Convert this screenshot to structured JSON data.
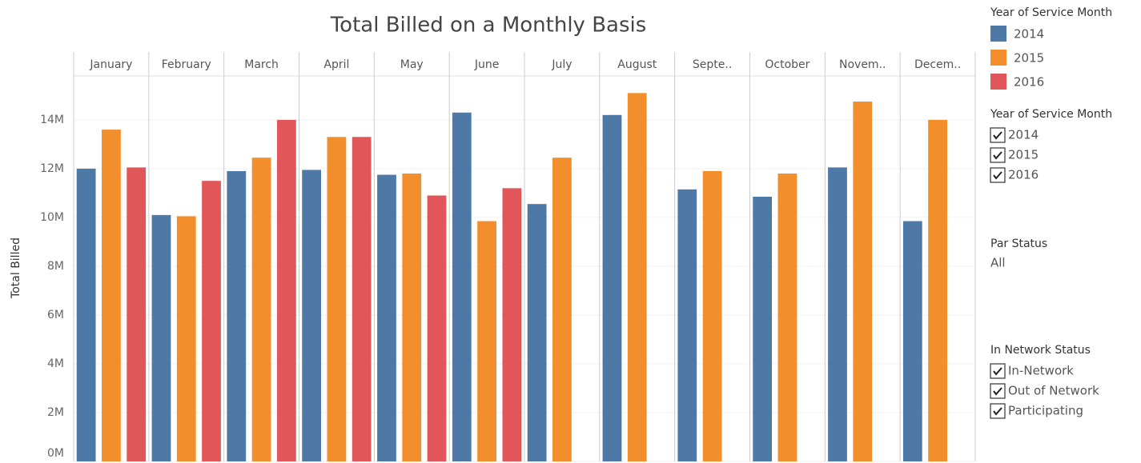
{
  "chart_data": {
    "type": "bar",
    "title": "Total Billed on a Monthly Basis",
    "y_label": "Total Billed",
    "categories": [
      "January",
      "February",
      "March",
      "April",
      "May",
      "June",
      "July",
      "August",
      "Septe..",
      "October",
      "Novem..",
      "Decem.."
    ],
    "legend_title": "Year of Service Month",
    "series": [
      {
        "name": "2014",
        "color": "#4e79a7",
        "values": [
          12.0,
          10.1,
          11.9,
          11.95,
          11.75,
          14.3,
          10.55,
          14.2,
          11.15,
          10.85,
          12.05,
          9.85
        ]
      },
      {
        "name": "2015",
        "color": "#f28e2b",
        "values": [
          13.6,
          10.05,
          12.45,
          13.3,
          11.8,
          9.85,
          12.45,
          15.1,
          11.9,
          11.8,
          14.75,
          14.0
        ]
      },
      {
        "name": "2016",
        "color": "#e15759",
        "values": [
          12.05,
          11.5,
          14.0,
          13.3,
          10.9,
          11.2,
          null,
          null,
          null,
          null,
          null,
          null
        ]
      }
    ],
    "ylim": [
      0,
      15.8
    ],
    "yticks": [
      {
        "value": 0,
        "label": "0M"
      },
      {
        "value": 2,
        "label": "2M"
      },
      {
        "value": 4,
        "label": "4M"
      },
      {
        "value": 6,
        "label": "6M"
      },
      {
        "value": 8,
        "label": "8M"
      },
      {
        "value": 10,
        "label": "10M"
      },
      {
        "value": 12,
        "label": "12M"
      },
      {
        "value": 14,
        "label": "14M"
      }
    ],
    "grid": true
  },
  "filters": [
    {
      "title": "Year of Service Month",
      "options": [
        "2014",
        "2015",
        "2016"
      ]
    },
    {
      "title": "Par Status",
      "value": "All"
    },
    {
      "title": "In Network Status",
      "options": [
        "In-Network",
        "Out of Network",
        "Participating"
      ]
    }
  ]
}
